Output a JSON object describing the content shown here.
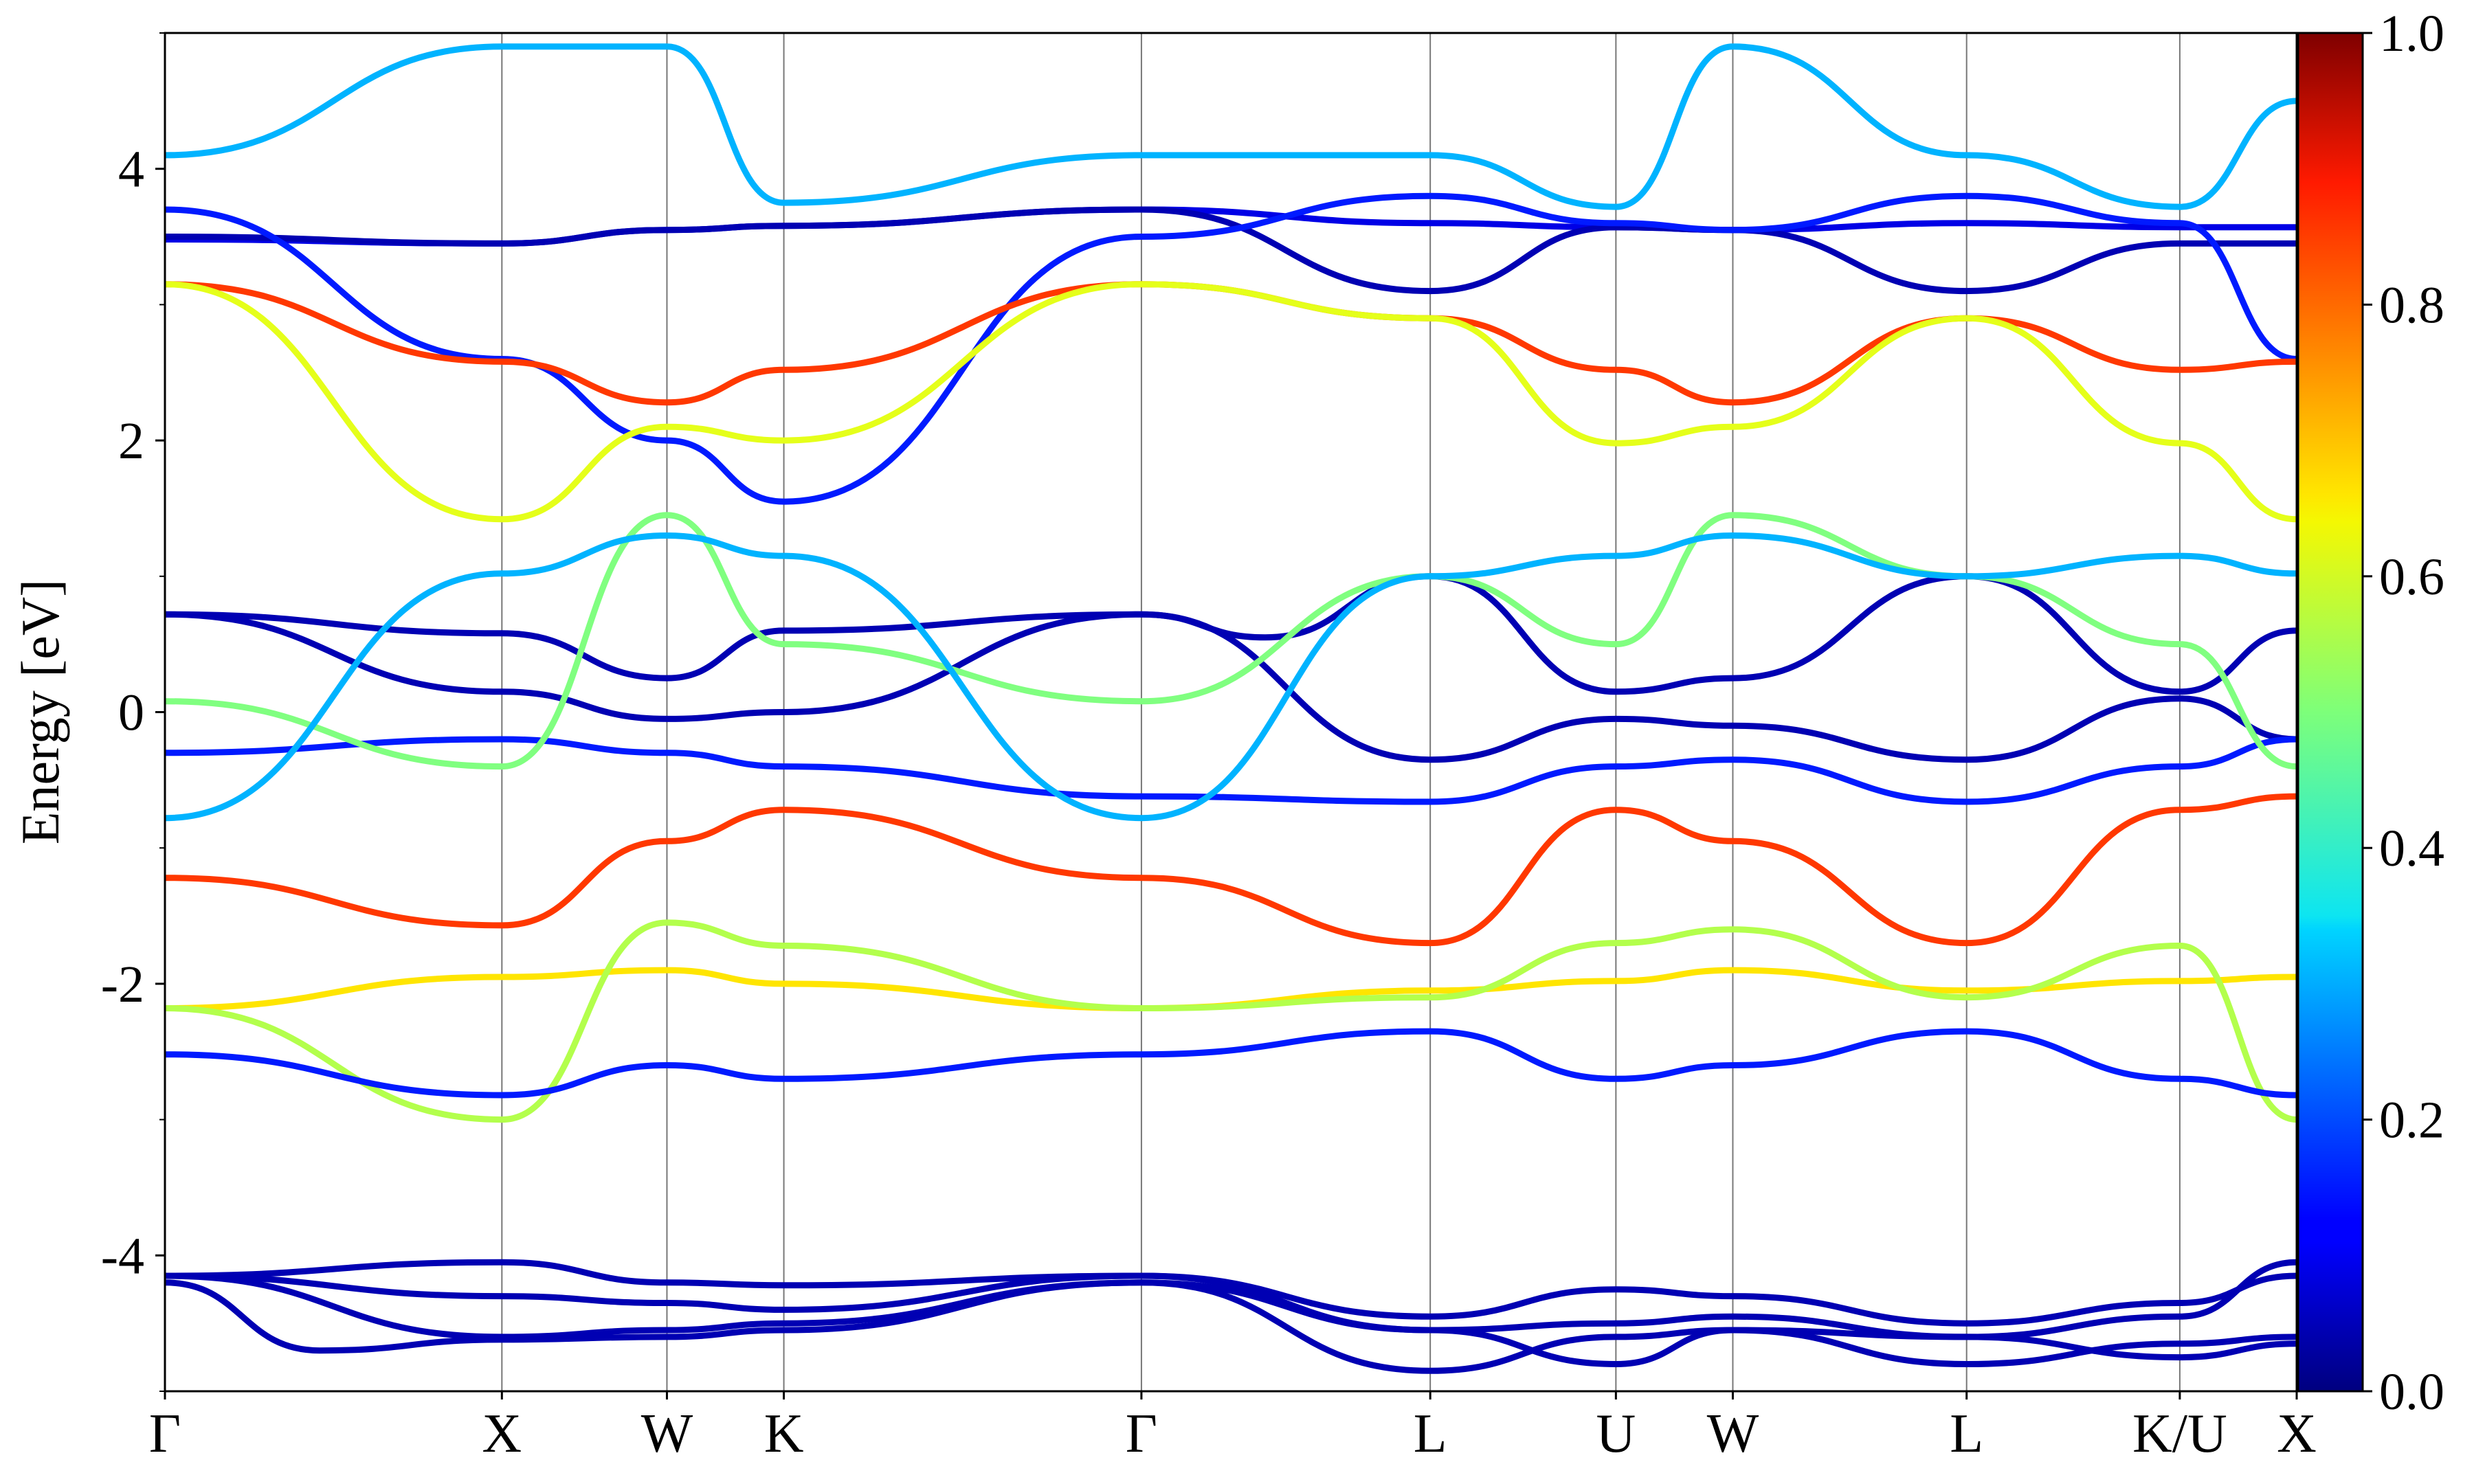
{
  "chart_data": {
    "type": "line",
    "subtype": "electronic band structure with color-mapped projection weight",
    "ylabel": "Energy [eV]",
    "xlabel": "",
    "ylim": [
      -5,
      5
    ],
    "yticks": [
      {
        "value": -4,
        "label": "-4"
      },
      {
        "value": -2,
        "label": "-2"
      },
      {
        "value": 0,
        "label": "0"
      },
      {
        "value": 2,
        "label": "2"
      },
      {
        "value": 4,
        "label": "4"
      }
    ],
    "y_minor_step": 1,
    "xlim": [
      0,
      6.2
    ],
    "kpoints": [
      {
        "label": "Γ",
        "x": 0.0
      },
      {
        "label": "X",
        "x": 0.98
      },
      {
        "label": "W",
        "x": 1.46
      },
      {
        "label": "K",
        "x": 1.8
      },
      {
        "label": "Γ",
        "x": 2.84
      },
      {
        "label": "L",
        "x": 3.68
      },
      {
        "label": "U",
        "x": 4.22
      },
      {
        "label": "W",
        "x": 4.56
      },
      {
        "label": "L",
        "x": 5.24
      },
      {
        "label": "K/U",
        "x": 5.86
      },
      {
        "label": "X",
        "x": 6.2
      }
    ],
    "colorbar": {
      "cmap": "jet",
      "range": [
        0,
        1
      ],
      "ticks": [
        {
          "value": 0.0,
          "label": "0.0"
        },
        {
          "value": 0.2,
          "label": "0.2"
        },
        {
          "value": 0.4,
          "label": "0.4"
        },
        {
          "value": 0.6,
          "label": "0.6"
        },
        {
          "value": 0.8,
          "label": "0.8"
        },
        {
          "value": 1.0,
          "label": "1.0"
        }
      ]
    },
    "series": [
      {
        "weight": 0.05,
        "points": [
          [
            0,
            -4.15
          ],
          [
            0.98,
            -4.05
          ],
          [
            1.46,
            -4.2
          ],
          [
            1.8,
            -4.22
          ],
          [
            2.84,
            -4.15
          ],
          [
            3.68,
            -4.55
          ],
          [
            4.22,
            -4.5
          ],
          [
            4.56,
            -4.45
          ],
          [
            5.24,
            -4.6
          ],
          [
            5.86,
            -4.45
          ],
          [
            6.2,
            -4.05
          ]
        ]
      },
      {
        "weight": 0.05,
        "points": [
          [
            0,
            -4.15
          ],
          [
            0.98,
            -4.3
          ],
          [
            1.46,
            -4.35
          ],
          [
            1.8,
            -4.4
          ],
          [
            2.84,
            -4.15
          ],
          [
            3.68,
            -4.45
          ],
          [
            4.22,
            -4.25
          ],
          [
            4.56,
            -4.3
          ],
          [
            5.24,
            -4.5
          ],
          [
            5.86,
            -4.35
          ],
          [
            6.2,
            -4.15
          ]
        ]
      },
      {
        "weight": 0.05,
        "points": [
          [
            0,
            -4.15
          ],
          [
            0.98,
            -4.6
          ],
          [
            1.46,
            -4.55
          ],
          [
            1.8,
            -4.5
          ],
          [
            2.84,
            -4.2
          ],
          [
            3.68,
            -4.85
          ],
          [
            4.22,
            -4.6
          ],
          [
            4.56,
            -4.55
          ],
          [
            5.24,
            -4.8
          ],
          [
            5.86,
            -4.65
          ],
          [
            6.2,
            -4.6
          ]
        ]
      },
      {
        "weight": 0.05,
        "points": [
          [
            0,
            -4.2
          ],
          [
            0.45,
            -4.7
          ],
          [
            0.98,
            -4.62
          ],
          [
            1.46,
            -4.6
          ],
          [
            1.8,
            -4.55
          ],
          [
            2.84,
            -4.2
          ],
          [
            3.68,
            -4.55
          ],
          [
            4.22,
            -4.8
          ],
          [
            4.56,
            -4.55
          ],
          [
            5.24,
            -4.6
          ],
          [
            5.86,
            -4.75
          ],
          [
            6.2,
            -4.65
          ]
        ]
      },
      {
        "weight": 0.05,
        "points": [
          [
            0,
            0.72
          ],
          [
            0.98,
            0.58
          ],
          [
            1.46,
            0.25
          ],
          [
            1.8,
            0.6
          ],
          [
            2.84,
            0.72
          ],
          [
            3.2,
            0.55
          ],
          [
            3.68,
            1.0
          ],
          [
            4.22,
            0.15
          ],
          [
            4.56,
            0.25
          ],
          [
            5.24,
            1.0
          ],
          [
            5.86,
            0.15
          ],
          [
            6.2,
            0.6
          ]
        ]
      },
      {
        "weight": 0.05,
        "points": [
          [
            0,
            0.72
          ],
          [
            0.98,
            0.15
          ],
          [
            1.46,
            -0.05
          ],
          [
            1.8,
            0.0
          ],
          [
            2.84,
            0.72
          ],
          [
            3.68,
            -0.35
          ],
          [
            4.22,
            -0.05
          ],
          [
            4.56,
            -0.1
          ],
          [
            5.24,
            -0.35
          ],
          [
            5.86,
            0.1
          ],
          [
            6.2,
            -0.2
          ]
        ]
      },
      {
        "weight": 0.15,
        "points": [
          [
            0,
            -0.3
          ],
          [
            0.98,
            -0.2
          ],
          [
            1.46,
            -0.3
          ],
          [
            1.8,
            -0.4
          ],
          [
            2.84,
            -0.62
          ],
          [
            3.68,
            -0.66
          ],
          [
            4.22,
            -0.4
          ],
          [
            4.56,
            -0.35
          ],
          [
            5.24,
            -0.66
          ],
          [
            5.86,
            -0.4
          ],
          [
            6.2,
            -0.2
          ]
        ]
      },
      {
        "weight": 0.1,
        "points": [
          [
            0,
            3.48
          ],
          [
            0.98,
            3.45
          ],
          [
            1.46,
            3.55
          ],
          [
            1.8,
            3.58
          ],
          [
            2.84,
            3.7
          ],
          [
            3.68,
            3.6
          ],
          [
            4.22,
            3.57
          ],
          [
            4.56,
            3.55
          ],
          [
            5.24,
            3.6
          ],
          [
            5.86,
            3.57
          ],
          [
            6.2,
            3.57
          ]
        ]
      },
      {
        "weight": 0.05,
        "points": [
          [
            0,
            3.5
          ],
          [
            0.98,
            3.45
          ],
          [
            1.46,
            3.55
          ],
          [
            1.8,
            3.58
          ],
          [
            2.84,
            3.7
          ],
          [
            3.68,
            3.1
          ],
          [
            4.22,
            3.57
          ],
          [
            4.56,
            3.55
          ],
          [
            5.24,
            3.1
          ],
          [
            5.86,
            3.45
          ],
          [
            6.2,
            3.45
          ]
        ]
      },
      {
        "weight": 0.15,
        "points": [
          [
            0,
            3.7
          ],
          [
            0.98,
            2.6
          ],
          [
            1.46,
            2.0
          ],
          [
            1.8,
            1.55
          ],
          [
            2.84,
            3.5
          ],
          [
            3.68,
            3.8
          ],
          [
            4.22,
            3.6
          ],
          [
            4.56,
            3.55
          ],
          [
            5.24,
            3.8
          ],
          [
            5.86,
            3.6
          ],
          [
            6.2,
            2.6
          ]
        ]
      },
      {
        "weight": 0.82,
        "points": [
          [
            0,
            3.15
          ],
          [
            0.98,
            2.58
          ],
          [
            1.46,
            2.28
          ],
          [
            1.8,
            2.52
          ],
          [
            2.84,
            3.15
          ],
          [
            3.68,
            2.9
          ],
          [
            4.22,
            2.52
          ],
          [
            4.56,
            2.28
          ],
          [
            5.24,
            2.9
          ],
          [
            5.86,
            2.52
          ],
          [
            6.2,
            2.58
          ]
        ]
      },
      {
        "weight": 0.6,
        "points": [
          [
            0,
            3.15
          ],
          [
            0.98,
            1.42
          ],
          [
            1.46,
            2.1
          ],
          [
            1.8,
            2.0
          ],
          [
            2.84,
            3.15
          ],
          [
            3.68,
            2.9
          ],
          [
            4.22,
            1.98
          ],
          [
            4.56,
            2.1
          ],
          [
            5.24,
            2.9
          ],
          [
            5.86,
            1.98
          ],
          [
            6.2,
            1.42
          ]
        ]
      },
      {
        "weight": 0.82,
        "points": [
          [
            0,
            -1.22
          ],
          [
            0.98,
            -1.57
          ],
          [
            1.46,
            -0.95
          ],
          [
            1.8,
            -0.72
          ],
          [
            2.84,
            -1.22
          ],
          [
            3.68,
            -1.7
          ],
          [
            4.22,
            -0.72
          ],
          [
            4.56,
            -0.95
          ],
          [
            5.24,
            -1.7
          ],
          [
            5.86,
            -0.72
          ],
          [
            6.2,
            -0.62
          ]
        ]
      },
      {
        "weight": 0.65,
        "points": [
          [
            0,
            -2.18
          ],
          [
            0.98,
            -1.95
          ],
          [
            1.46,
            -1.9
          ],
          [
            1.8,
            -2.0
          ],
          [
            2.84,
            -2.18
          ],
          [
            3.68,
            -2.05
          ],
          [
            4.22,
            -1.98
          ],
          [
            4.56,
            -1.9
          ],
          [
            5.24,
            -2.05
          ],
          [
            5.86,
            -1.98
          ],
          [
            6.2,
            -1.95
          ]
        ]
      },
      {
        "weight": 0.55,
        "points": [
          [
            0,
            -2.18
          ],
          [
            0.98,
            -3.0
          ],
          [
            1.46,
            -1.55
          ],
          [
            1.8,
            -1.72
          ],
          [
            2.84,
            -2.18
          ],
          [
            3.68,
            -2.1
          ],
          [
            4.22,
            -1.7
          ],
          [
            4.56,
            -1.6
          ],
          [
            5.24,
            -2.1
          ],
          [
            5.86,
            -1.72
          ],
          [
            6.2,
            -3.0
          ]
        ]
      },
      {
        "weight": 0.5,
        "points": [
          [
            0,
            0.08
          ],
          [
            0.98,
            -0.4
          ],
          [
            1.46,
            1.45
          ],
          [
            1.8,
            0.5
          ],
          [
            2.84,
            0.08
          ],
          [
            3.68,
            1.0
          ],
          [
            4.22,
            0.5
          ],
          [
            4.56,
            1.45
          ],
          [
            5.24,
            1.0
          ],
          [
            5.86,
            0.5
          ],
          [
            6.2,
            -0.4
          ]
        ]
      },
      {
        "weight": 0.3,
        "points": [
          [
            0,
            -0.78
          ],
          [
            0.98,
            1.02
          ],
          [
            1.46,
            1.3
          ],
          [
            1.8,
            1.15
          ],
          [
            2.84,
            -0.78
          ],
          [
            3.68,
            1.0
          ],
          [
            4.22,
            1.15
          ],
          [
            4.56,
            1.3
          ],
          [
            5.24,
            1.0
          ],
          [
            5.86,
            1.15
          ],
          [
            6.2,
            1.02
          ]
        ]
      },
      {
        "weight": 0.15,
        "points": [
          [
            0,
            -2.52
          ],
          [
            0.98,
            -2.82
          ],
          [
            1.46,
            -2.6
          ],
          [
            1.8,
            -2.7
          ],
          [
            2.84,
            -2.52
          ],
          [
            3.68,
            -2.35
          ],
          [
            4.22,
            -2.7
          ],
          [
            4.56,
            -2.6
          ],
          [
            5.24,
            -2.35
          ],
          [
            5.86,
            -2.7
          ],
          [
            6.2,
            -2.82
          ]
        ]
      },
      {
        "weight": 0.3,
        "points": [
          [
            0,
            4.1
          ],
          [
            0.98,
            4.9
          ],
          [
            1.46,
            4.9
          ],
          [
            1.8,
            3.75
          ],
          [
            2.84,
            4.1
          ],
          [
            3.68,
            4.1
          ],
          [
            4.22,
            3.72
          ],
          [
            4.56,
            4.9
          ],
          [
            5.24,
            4.1
          ],
          [
            5.86,
            3.72
          ],
          [
            6.2,
            4.5
          ]
        ]
      }
    ]
  }
}
